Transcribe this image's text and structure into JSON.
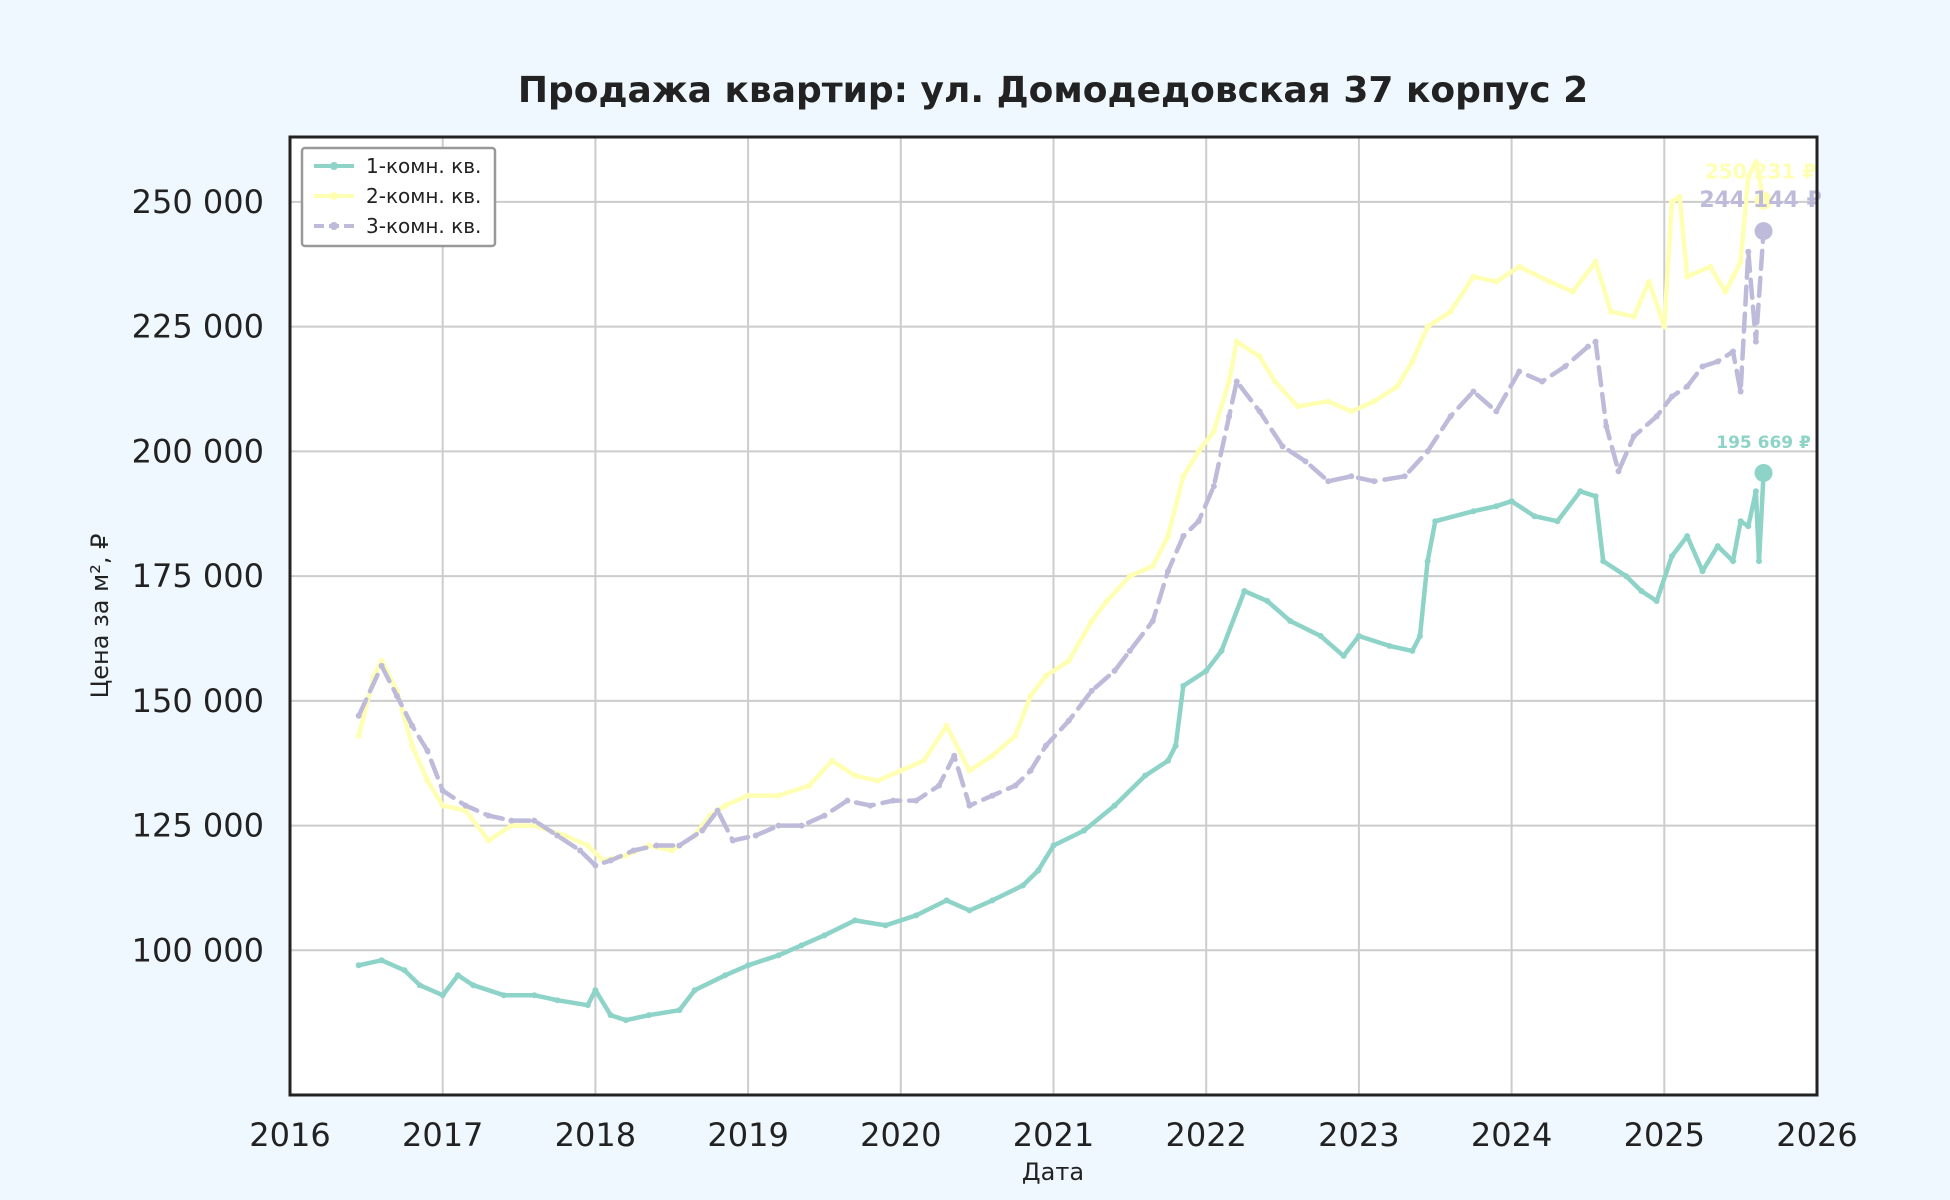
{
  "chart_data": {
    "type": "line",
    "title": "Продажа квартир: ул. Домодедовская 37 корпус 2",
    "xlabel": "Дата",
    "ylabel": "Цена за м², ₽",
    "xlim": [
      2016.0,
      2026.0
    ],
    "ylim": [
      71000,
      263000
    ],
    "x_ticks": [
      2016,
      2017,
      2018,
      2019,
      2020,
      2021,
      2022,
      2023,
      2024,
      2025,
      2026
    ],
    "x_tick_labels": [
      "2016",
      "2017",
      "2018",
      "2019",
      "2020",
      "2021",
      "2022",
      "2023",
      "2024",
      "2025",
      "2026"
    ],
    "y_ticks": [
      100000,
      125000,
      150000,
      175000,
      200000,
      225000,
      250000
    ],
    "y_tick_labels": [
      "100 000",
      "125 000",
      "150 000",
      "175 000",
      "200 000",
      "225 000",
      "250 000"
    ],
    "grid": true,
    "legend_position": "top-left",
    "series": [
      {
        "name": "1-комн. кв.",
        "color": "#8dd3c7",
        "style": "solid",
        "end_label": "195 669 ₽",
        "end_value": 195669,
        "points": [
          [
            2016.45,
            97000
          ],
          [
            2016.6,
            98000
          ],
          [
            2016.75,
            96000
          ],
          [
            2016.85,
            93000
          ],
          [
            2017.0,
            91000
          ],
          [
            2017.1,
            95000
          ],
          [
            2017.2,
            93000
          ],
          [
            2017.4,
            91000
          ],
          [
            2017.6,
            91000
          ],
          [
            2017.75,
            90000
          ],
          [
            2017.95,
            89000
          ],
          [
            2018.0,
            92000
          ],
          [
            2018.1,
            87000
          ],
          [
            2018.2,
            86000
          ],
          [
            2018.35,
            87000
          ],
          [
            2018.55,
            88000
          ],
          [
            2018.65,
            92000
          ],
          [
            2018.85,
            95000
          ],
          [
            2019.0,
            97000
          ],
          [
            2019.2,
            99000
          ],
          [
            2019.35,
            101000
          ],
          [
            2019.5,
            103000
          ],
          [
            2019.7,
            106000
          ],
          [
            2019.9,
            105000
          ],
          [
            2020.1,
            107000
          ],
          [
            2020.3,
            110000
          ],
          [
            2020.45,
            108000
          ],
          [
            2020.6,
            110000
          ],
          [
            2020.8,
            113000
          ],
          [
            2020.9,
            116000
          ],
          [
            2021.0,
            121000
          ],
          [
            2021.2,
            124000
          ],
          [
            2021.4,
            129000
          ],
          [
            2021.6,
            135000
          ],
          [
            2021.75,
            138000
          ],
          [
            2021.8,
            141000
          ],
          [
            2021.85,
            153000
          ],
          [
            2022.0,
            156000
          ],
          [
            2022.1,
            160000
          ],
          [
            2022.25,
            172000
          ],
          [
            2022.4,
            170000
          ],
          [
            2022.55,
            166000
          ],
          [
            2022.75,
            163000
          ],
          [
            2022.9,
            159000
          ],
          [
            2023.0,
            163000
          ],
          [
            2023.2,
            161000
          ],
          [
            2023.35,
            160000
          ],
          [
            2023.4,
            163000
          ],
          [
            2023.45,
            178000
          ],
          [
            2023.5,
            186000
          ],
          [
            2023.75,
            188000
          ],
          [
            2023.9,
            189000
          ],
          [
            2024.0,
            190000
          ],
          [
            2024.15,
            187000
          ],
          [
            2024.3,
            186000
          ],
          [
            2024.45,
            192000
          ],
          [
            2024.55,
            191000
          ],
          [
            2024.6,
            178000
          ],
          [
            2024.75,
            175000
          ],
          [
            2024.85,
            172000
          ],
          [
            2024.95,
            170000
          ],
          [
            2025.05,
            179000
          ],
          [
            2025.15,
            183000
          ],
          [
            2025.25,
            176000
          ],
          [
            2025.35,
            181000
          ],
          [
            2025.45,
            178000
          ],
          [
            2025.5,
            186000
          ],
          [
            2025.55,
            185000
          ],
          [
            2025.6,
            192000
          ],
          [
            2025.62,
            178000
          ],
          [
            2025.65,
            195669
          ]
        ]
      },
      {
        "name": "2-комн. кв.",
        "color": "#ffffb3",
        "style": "solid",
        "end_label": "250 231 ₽",
        "end_value": 250231,
        "points": [
          [
            2016.45,
            143000
          ],
          [
            2016.55,
            155000
          ],
          [
            2016.6,
            158000
          ],
          [
            2016.7,
            152000
          ],
          [
            2016.8,
            141000
          ],
          [
            2016.9,
            134000
          ],
          [
            2017.0,
            129000
          ],
          [
            2017.15,
            128000
          ],
          [
            2017.3,
            122000
          ],
          [
            2017.45,
            125000
          ],
          [
            2017.6,
            125000
          ],
          [
            2017.8,
            123000
          ],
          [
            2017.95,
            121000
          ],
          [
            2018.05,
            118000
          ],
          [
            2018.2,
            119000
          ],
          [
            2018.35,
            121000
          ],
          [
            2018.5,
            120000
          ],
          [
            2018.65,
            123000
          ],
          [
            2018.75,
            127000
          ],
          [
            2018.85,
            129000
          ],
          [
            2019.0,
            131000
          ],
          [
            2019.2,
            131000
          ],
          [
            2019.4,
            133000
          ],
          [
            2019.55,
            138000
          ],
          [
            2019.7,
            135000
          ],
          [
            2019.85,
            134000
          ],
          [
            2020.0,
            136000
          ],
          [
            2020.15,
            138000
          ],
          [
            2020.3,
            145000
          ],
          [
            2020.45,
            136000
          ],
          [
            2020.6,
            139000
          ],
          [
            2020.75,
            143000
          ],
          [
            2020.85,
            151000
          ],
          [
            2020.95,
            155000
          ],
          [
            2021.1,
            158000
          ],
          [
            2021.25,
            166000
          ],
          [
            2021.35,
            170000
          ],
          [
            2021.5,
            175000
          ],
          [
            2021.65,
            177000
          ],
          [
            2021.75,
            183000
          ],
          [
            2021.85,
            195000
          ],
          [
            2021.95,
            200000
          ],
          [
            2022.05,
            204000
          ],
          [
            2022.15,
            214000
          ],
          [
            2022.2,
            222000
          ],
          [
            2022.35,
            219000
          ],
          [
            2022.45,
            214000
          ],
          [
            2022.6,
            209000
          ],
          [
            2022.8,
            210000
          ],
          [
            2022.95,
            208000
          ],
          [
            2023.1,
            210000
          ],
          [
            2023.25,
            213000
          ],
          [
            2023.35,
            218000
          ],
          [
            2023.45,
            225000
          ],
          [
            2023.6,
            228000
          ],
          [
            2023.75,
            235000
          ],
          [
            2023.9,
            234000
          ],
          [
            2024.05,
            237000
          ],
          [
            2024.25,
            234000
          ],
          [
            2024.4,
            232000
          ],
          [
            2024.55,
            238000
          ],
          [
            2024.65,
            228000
          ],
          [
            2024.8,
            227000
          ],
          [
            2024.9,
            234000
          ],
          [
            2025.0,
            225000
          ],
          [
            2025.05,
            250000
          ],
          [
            2025.1,
            251000
          ],
          [
            2025.15,
            235000
          ],
          [
            2025.3,
            237000
          ],
          [
            2025.4,
            232000
          ],
          [
            2025.45,
            235000
          ],
          [
            2025.5,
            238000
          ],
          [
            2025.55,
            255000
          ],
          [
            2025.6,
            258000
          ],
          [
            2025.65,
            250231
          ]
        ]
      },
      {
        "name": "3-комн. кв.",
        "color": "#bebada",
        "style": "dashed",
        "end_label": "244 144 ₽",
        "end_value": 244144,
        "points": [
          [
            2016.45,
            147000
          ],
          [
            2016.6,
            157000
          ],
          [
            2016.7,
            151000
          ],
          [
            2016.8,
            145000
          ],
          [
            2016.9,
            140000
          ],
          [
            2017.0,
            132000
          ],
          [
            2017.15,
            129000
          ],
          [
            2017.3,
            127000
          ],
          [
            2017.45,
            126000
          ],
          [
            2017.6,
            126000
          ],
          [
            2017.75,
            123000
          ],
          [
            2017.9,
            120000
          ],
          [
            2018.0,
            117000
          ],
          [
            2018.1,
            118000
          ],
          [
            2018.25,
            120000
          ],
          [
            2018.4,
            121000
          ],
          [
            2018.55,
            121000
          ],
          [
            2018.7,
            124000
          ],
          [
            2018.8,
            128000
          ],
          [
            2018.9,
            122000
          ],
          [
            2019.05,
            123000
          ],
          [
            2019.2,
            125000
          ],
          [
            2019.35,
            125000
          ],
          [
            2019.5,
            127000
          ],
          [
            2019.65,
            130000
          ],
          [
            2019.8,
            129000
          ],
          [
            2019.95,
            130000
          ],
          [
            2020.1,
            130000
          ],
          [
            2020.25,
            133000
          ],
          [
            2020.35,
            139000
          ],
          [
            2020.45,
            129000
          ],
          [
            2020.6,
            131000
          ],
          [
            2020.75,
            133000
          ],
          [
            2020.85,
            136000
          ],
          [
            2020.95,
            141000
          ],
          [
            2021.1,
            146000
          ],
          [
            2021.25,
            152000
          ],
          [
            2021.4,
            156000
          ],
          [
            2021.5,
            160000
          ],
          [
            2021.65,
            166000
          ],
          [
            2021.75,
            176000
          ],
          [
            2021.85,
            183000
          ],
          [
            2021.95,
            186000
          ],
          [
            2022.05,
            193000
          ],
          [
            2022.15,
            207000
          ],
          [
            2022.2,
            214000
          ],
          [
            2022.35,
            208000
          ],
          [
            2022.5,
            201000
          ],
          [
            2022.65,
            198000
          ],
          [
            2022.8,
            194000
          ],
          [
            2022.95,
            195000
          ],
          [
            2023.1,
            194000
          ],
          [
            2023.3,
            195000
          ],
          [
            2023.45,
            200000
          ],
          [
            2023.6,
            207000
          ],
          [
            2023.75,
            212000
          ],
          [
            2023.9,
            208000
          ],
          [
            2024.05,
            216000
          ],
          [
            2024.2,
            214000
          ],
          [
            2024.35,
            217000
          ],
          [
            2024.5,
            221000
          ],
          [
            2024.55,
            222000
          ],
          [
            2024.62,
            205000
          ],
          [
            2024.7,
            196000
          ],
          [
            2024.8,
            203000
          ],
          [
            2024.95,
            207000
          ],
          [
            2025.05,
            211000
          ],
          [
            2025.15,
            213000
          ],
          [
            2025.25,
            217000
          ],
          [
            2025.35,
            218000
          ],
          [
            2025.45,
            220000
          ],
          [
            2025.5,
            212000
          ],
          [
            2025.55,
            240000
          ],
          [
            2025.6,
            222000
          ],
          [
            2025.65,
            244144
          ]
        ]
      }
    ]
  }
}
